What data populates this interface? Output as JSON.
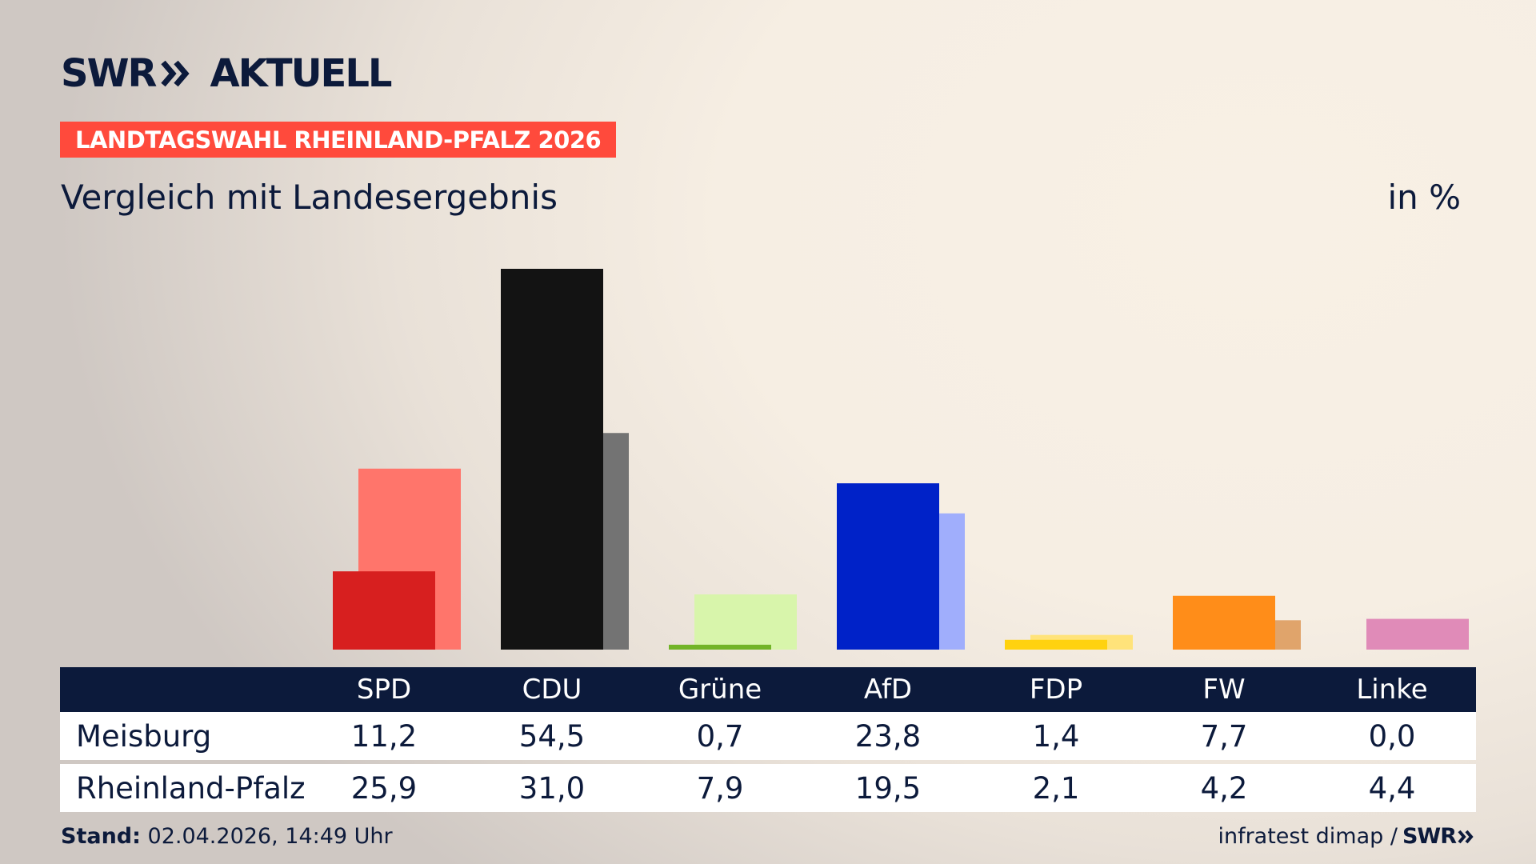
{
  "header": {
    "logo_left": "SWR",
    "logo_right": "AKTUELL",
    "badge": "LANDTAGSWAHL RHEINLAND-PFALZ 2026",
    "subtitle": "Vergleich mit Landesergebnis",
    "unit": "in %"
  },
  "table": {
    "rows": [
      {
        "label": "Meisburg"
      },
      {
        "label": "Rheinland-Pfalz"
      }
    ]
  },
  "footer": {
    "stand_label": "Stand:",
    "stand_value": "02.04.2026, 14:49 Uhr",
    "source": "infratest dimap /",
    "source_logo": "SWR"
  },
  "colors": {
    "navy": "#0c1a3b",
    "badge": "#ff4a3c"
  },
  "chart_data": {
    "type": "bar",
    "categories": [
      "SPD",
      "CDU",
      "Grüne",
      "AfD",
      "FDP",
      "FW",
      "Linke"
    ],
    "series": [
      {
        "name": "Meisburg",
        "values": [
          11.2,
          54.5,
          0.7,
          23.8,
          1.4,
          7.7,
          0.0
        ]
      },
      {
        "name": "Rheinland-Pfalz",
        "values": [
          25.9,
          31.0,
          7.9,
          19.5,
          2.1,
          4.2,
          4.4
        ]
      }
    ],
    "value_labels": [
      [
        "11,2",
        "54,5",
        "0,7",
        "23,8",
        "1,4",
        "7,7",
        "0,0"
      ],
      [
        "25,9",
        "31,0",
        "7,9",
        "19,5",
        "2,1",
        "4,2",
        "4,4"
      ]
    ],
    "colors_local": [
      "#d71f1f",
      "#131313",
      "#72b428",
      "#0022c8",
      "#ffd20f",
      "#ff8d19",
      "#e08bb8"
    ],
    "colors_state": [
      "#ff756b",
      "#737373",
      "#d8f5ab",
      "#a0aefc",
      "#ffe37a",
      "#e0a46b",
      "#e08bb8"
    ],
    "ylim": [
      0,
      54.5
    ]
  }
}
